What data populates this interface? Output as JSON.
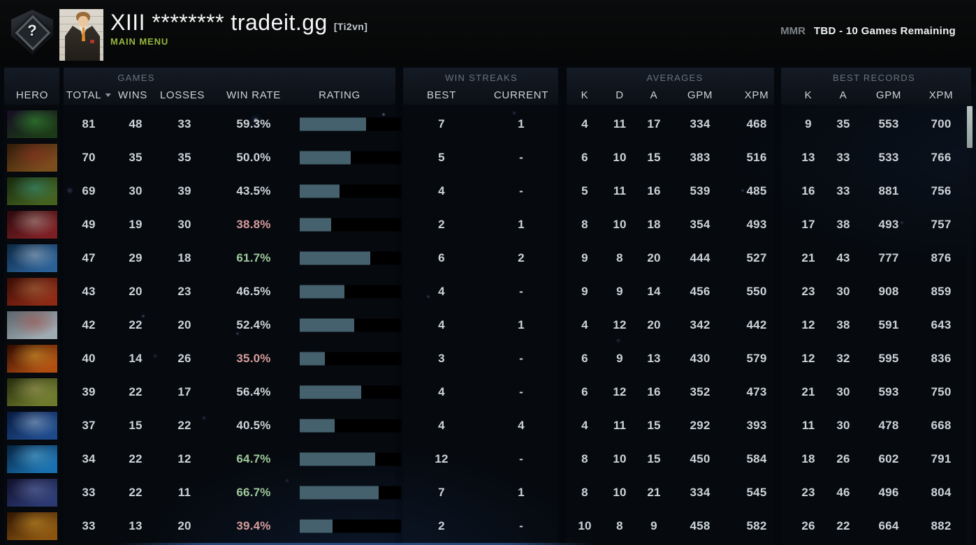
{
  "header": {
    "rank_medal": "unranked-question-medal",
    "player_name": "XIII ******** tradeit.gg",
    "clan_tag": "[Ti2vn]",
    "nav_label": "MAIN MENU",
    "mmr_label": "MMR",
    "mmr_value": "TBD - 10 Games Remaining"
  },
  "colors": {
    "accent_green": "#94b53d",
    "winrate_positive": "#9fc89b",
    "winrate_negative": "#d69c9c",
    "rating_bar_fill": "#45616d",
    "rating_bar_empty": "#000000",
    "scroll_thumb": "#a3b2af"
  },
  "table": {
    "groups": {
      "games": "GAMES",
      "streaks": "WIN STREAKS",
      "averages": "AVERAGES",
      "records": "BEST RECORDS"
    },
    "columns": {
      "hero": "HERO",
      "total": "TOTAL",
      "wins": "WINS",
      "losses": "LOSSES",
      "win_rate": "WIN RATE",
      "rating": "RATING",
      "best": "BEST",
      "current": "CURRENT",
      "k": "K",
      "d": "D",
      "a": "A",
      "gpm": "GPM",
      "xpm": "XPM",
      "rk": "K",
      "ra": "A",
      "rgpm": "GPM",
      "rxpm": "XPM"
    },
    "sort": {
      "column": "total",
      "direction": "desc"
    },
    "rows": [
      {
        "hero_id": "hero-1",
        "total": "81",
        "wins": "48",
        "losses": "33",
        "win_rate": "59.3%",
        "tone": "neutral",
        "rating_percent": 65.5,
        "streak_best": "7",
        "streak_current": "1",
        "avg_k": "4",
        "avg_d": "11",
        "avg_a": "17",
        "avg_gpm": "334",
        "avg_xpm": "468",
        "best_k": "9",
        "best_a": "35",
        "best_gpm": "553",
        "best_xpm": "700",
        "icon_colors": [
          "#160d24",
          "#1c3a17",
          "#45c93f"
        ]
      },
      {
        "hero_id": "hero-2",
        "total": "70",
        "wins": "35",
        "losses": "35",
        "win_rate": "50.0%",
        "tone": "neutral",
        "rating_percent": 50.0,
        "streak_best": "5",
        "streak_current": "-",
        "avg_k": "6",
        "avg_d": "10",
        "avg_a": "15",
        "avg_gpm": "383",
        "avg_xpm": "516",
        "best_k": "13",
        "best_a": "33",
        "best_gpm": "533",
        "best_xpm": "766",
        "icon_colors": [
          "#2e1a0a",
          "#7a4d1d",
          "#a8322a"
        ]
      },
      {
        "hero_id": "hero-3",
        "total": "69",
        "wins": "30",
        "losses": "39",
        "win_rate": "43.5%",
        "tone": "neutral",
        "rating_percent": 39.2,
        "streak_best": "4",
        "streak_current": "-",
        "avg_k": "5",
        "avg_d": "11",
        "avg_a": "16",
        "avg_gpm": "539",
        "avg_xpm": "485",
        "best_k": "16",
        "best_a": "33",
        "best_gpm": "881",
        "best_xpm": "756",
        "icon_colors": [
          "#16280e",
          "#44611f",
          "#3fb9a8"
        ]
      },
      {
        "hero_id": "hero-4",
        "total": "49",
        "wins": "19",
        "losses": "30",
        "win_rate": "38.8%",
        "tone": "neg",
        "rating_percent": 31.3,
        "streak_best": "2",
        "streak_current": "1",
        "avg_k": "8",
        "avg_d": "10",
        "avg_a": "18",
        "avg_gpm": "354",
        "avg_xpm": "493",
        "best_k": "17",
        "best_a": "38",
        "best_gpm": "493",
        "best_xpm": "757",
        "icon_colors": [
          "#2a0a0e",
          "#7c1f24",
          "#ded6c8"
        ]
      },
      {
        "hero_id": "hero-5",
        "total": "47",
        "wins": "29",
        "losses": "18",
        "win_rate": "61.7%",
        "tone": "pos",
        "rating_percent": 69.5,
        "streak_best": "6",
        "streak_current": "2",
        "avg_k": "9",
        "avg_d": "8",
        "avg_a": "20",
        "avg_gpm": "444",
        "avg_xpm": "527",
        "best_k": "21",
        "best_a": "43",
        "best_gpm": "777",
        "best_xpm": "876",
        "icon_colors": [
          "#0d2742",
          "#2a6096",
          "#dfe7ee"
        ]
      },
      {
        "hero_id": "hero-6",
        "total": "43",
        "wins": "20",
        "losses": "23",
        "win_rate": "46.5%",
        "tone": "neutral",
        "rating_percent": 44.2,
        "streak_best": "4",
        "streak_current": "-",
        "avg_k": "9",
        "avg_d": "9",
        "avg_a": "14",
        "avg_gpm": "456",
        "avg_xpm": "550",
        "best_k": "23",
        "best_a": "30",
        "best_gpm": "908",
        "best_xpm": "859",
        "icon_colors": [
          "#380c06",
          "#8c2a16",
          "#c79457"
        ]
      },
      {
        "hero_id": "hero-7",
        "total": "42",
        "wins": "22",
        "losses": "20",
        "win_rate": "52.4%",
        "tone": "neutral",
        "rating_percent": 54.0,
        "streak_best": "4",
        "streak_current": "1",
        "avg_k": "4",
        "avg_d": "12",
        "avg_a": "20",
        "avg_gpm": "342",
        "avg_xpm": "442",
        "best_k": "12",
        "best_a": "38",
        "best_gpm": "591",
        "best_xpm": "643",
        "icon_colors": [
          "#5a646b",
          "#9fabb2",
          "#b5382c"
        ]
      },
      {
        "hero_id": "hero-8",
        "total": "40",
        "wins": "14",
        "losses": "26",
        "win_rate": "35.0%",
        "tone": "neg",
        "rating_percent": 25.0,
        "streak_best": "3",
        "streak_current": "-",
        "avg_k": "6",
        "avg_d": "9",
        "avg_a": "13",
        "avg_gpm": "430",
        "avg_xpm": "579",
        "best_k": "12",
        "best_a": "32",
        "best_gpm": "595",
        "best_xpm": "836",
        "icon_colors": [
          "#2d0a02",
          "#b04e12",
          "#ffcf3e"
        ]
      },
      {
        "hero_id": "hero-9",
        "total": "39",
        "wins": "22",
        "losses": "17",
        "win_rate": "56.4%",
        "tone": "neutral",
        "rating_percent": 60.7,
        "streak_best": "4",
        "streak_current": "-",
        "avg_k": "6",
        "avg_d": "12",
        "avg_a": "16",
        "avg_gpm": "352",
        "avg_xpm": "473",
        "best_k": "21",
        "best_a": "30",
        "best_gpm": "593",
        "best_xpm": "750",
        "icon_colors": [
          "#252b0e",
          "#6d7a2c",
          "#c9bd7a"
        ]
      },
      {
        "hero_id": "hero-10",
        "total": "37",
        "wins": "15",
        "losses": "22",
        "win_rate": "40.5%",
        "tone": "neutral",
        "rating_percent": 34.2,
        "streak_best": "4",
        "streak_current": "4",
        "avg_k": "4",
        "avg_d": "11",
        "avg_a": "15",
        "avg_gpm": "292",
        "avg_xpm": "393",
        "best_k": "11",
        "best_a": "30",
        "best_gpm": "478",
        "best_xpm": "668",
        "icon_colors": [
          "#081a3e",
          "#1e4a8c",
          "#cfeaff"
        ]
      },
      {
        "hero_id": "hero-11",
        "total": "34",
        "wins": "22",
        "losses": "12",
        "win_rate": "64.7%",
        "tone": "pos",
        "rating_percent": 74.5,
        "streak_best": "12",
        "streak_current": "-",
        "avg_k": "8",
        "avg_d": "10",
        "avg_a": "15",
        "avg_gpm": "450",
        "avg_xpm": "584",
        "best_k": "18",
        "best_a": "26",
        "best_gpm": "602",
        "best_xpm": "791",
        "icon_colors": [
          "#07223e",
          "#1a6fae",
          "#7fd8ff"
        ]
      },
      {
        "hero_id": "hero-12",
        "total": "33",
        "wins": "22",
        "losses": "11",
        "win_rate": "66.7%",
        "tone": "pos",
        "rating_percent": 77.8,
        "streak_best": "7",
        "streak_current": "1",
        "avg_k": "8",
        "avg_d": "10",
        "avg_a": "21",
        "avg_gpm": "334",
        "avg_xpm": "545",
        "best_k": "23",
        "best_a": "46",
        "best_gpm": "496",
        "best_xpm": "804",
        "icon_colors": [
          "#100f28",
          "#2b3a72",
          "#8691cf"
        ]
      },
      {
        "hero_id": "hero-13",
        "total": "33",
        "wins": "13",
        "losses": "20",
        "win_rate": "39.4%",
        "tone": "neg",
        "rating_percent": 32.3,
        "streak_best": "2",
        "streak_current": "-",
        "avg_k": "10",
        "avg_d": "8",
        "avg_a": "9",
        "avg_gpm": "458",
        "avg_xpm": "582",
        "best_k": "26",
        "best_a": "22",
        "best_gpm": "664",
        "best_xpm": "882",
        "icon_colors": [
          "#2e1504",
          "#8a5410",
          "#f0b83a"
        ]
      }
    ]
  }
}
